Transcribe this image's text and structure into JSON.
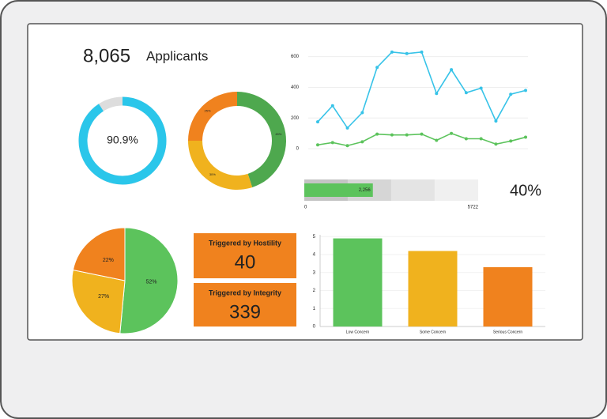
{
  "chart_data": [
    {
      "type": "stat",
      "title": "Applicants",
      "value": 8065,
      "value_label": "8,065"
    },
    {
      "type": "gauge",
      "values": [
        90.9
      ],
      "value_labels": [
        "90.9%"
      ],
      "ylim": [
        0,
        100
      ],
      "color": "#2ac6ea",
      "track_color": "#dddddd"
    },
    {
      "type": "donut",
      "categories": [
        null,
        null,
        null
      ],
      "values": [
        45,
        30,
        25
      ],
      "value_labels": [
        "45%",
        "30%",
        "25%"
      ],
      "colors": [
        "#4ea84e",
        "#f0b21e",
        "#f0821e"
      ]
    },
    {
      "type": "line",
      "categories": [
        null,
        null,
        null,
        null,
        null,
        null,
        null,
        null,
        null,
        null,
        null,
        null,
        null,
        null,
        null
      ],
      "series": [
        {
          "color": "#37c3e8",
          "values": [
            175,
            280,
            135,
            235,
            530,
            630,
            620,
            630,
            360,
            515,
            365,
            395,
            180,
            355,
            380
          ]
        },
        {
          "color": "#5cc35c",
          "values": [
            25,
            40,
            20,
            45,
            95,
            90,
            90,
            95,
            55,
            100,
            65,
            65,
            30,
            50,
            75
          ]
        }
      ],
      "ylim": [
        -20,
        660
      ],
      "yticks": [
        0,
        200,
        400,
        600
      ],
      "grid": true
    },
    {
      "type": "bullet",
      "values": [
        2256
      ],
      "value_labels": [
        "2,256"
      ],
      "xlim": [
        0,
        5722
      ],
      "xticks": [
        0,
        5722
      ],
      "ranges": [
        1430,
        2860,
        4290,
        5722
      ],
      "range_colors": [
        "#c4c4c4",
        "#d6d6d6",
        "#e4e4e4",
        "#f0f0f0"
      ],
      "color": "#5cc35c"
    },
    {
      "type": "stat",
      "value": 40,
      "value_label": "40%"
    },
    {
      "type": "pie",
      "categories": [
        null,
        null,
        null
      ],
      "values": [
        52,
        27,
        22
      ],
      "value_labels": [
        "52%",
        "27%",
        "22%"
      ],
      "colors": [
        "#5cc35c",
        "#f0b21e",
        "#f0821e"
      ]
    },
    {
      "type": "card",
      "title": "Triggered by Hostility",
      "value": 40,
      "color": "#f0821e"
    },
    {
      "type": "card",
      "title": "Triggered by Integrity",
      "value": 339,
      "color": "#f0821e"
    },
    {
      "type": "bar",
      "categories": [
        "Low Concern",
        "Some Concern",
        "Serious Concern"
      ],
      "values": [
        4.9,
        4.2,
        3.3
      ],
      "colors": [
        "#5cc35c",
        "#f0b21e",
        "#f0821e"
      ],
      "ylim": [
        0,
        5.1
      ],
      "yticks": [
        0,
        1,
        2,
        3,
        4,
        5
      ],
      "grid": true
    }
  ]
}
